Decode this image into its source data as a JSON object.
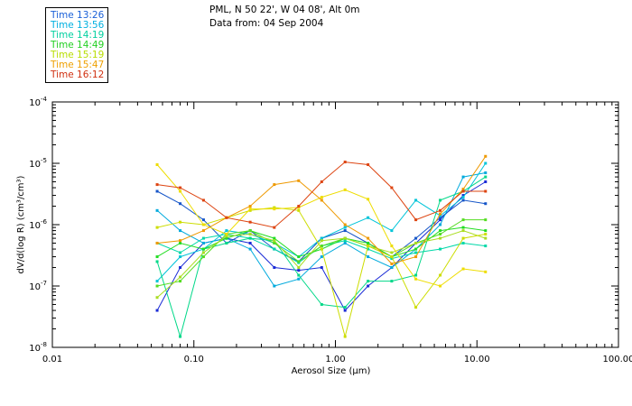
{
  "header": {
    "site": "PML, N 50 22', W 04 08', Alt 0m",
    "date_line": "Data from: 04 Sep 2004"
  },
  "chart_data": {
    "type": "line",
    "title": "PML, N 50 22', W 04 08', Alt 0m",
    "subtitle": "Data from: 04 Sep 2004",
    "xlabel": "Aerosol Size (µm)",
    "ylabel": "dV/d(log R) (cm³/cm³)",
    "xscale": "log",
    "yscale": "log",
    "xlim": [
      0.01,
      100
    ],
    "ylim": [
      1e-08,
      0.0001
    ],
    "x_ticks": [
      {
        "value": 0.01,
        "label": "0.01"
      },
      {
        "value": 0.1,
        "label": "0.10"
      },
      {
        "value": 1,
        "label": "1.00"
      },
      {
        "value": 10,
        "label": "10.00"
      },
      {
        "value": 100,
        "label": "100.00"
      }
    ],
    "y_ticks": [
      {
        "value": 1e-08,
        "base": "10",
        "exp": "-8"
      },
      {
        "value": 1e-07,
        "base": "10",
        "exp": "-7"
      },
      {
        "value": 1e-06,
        "base": "10",
        "exp": "-6"
      },
      {
        "value": 1e-05,
        "base": "10",
        "exp": "-5"
      },
      {
        "value": 0.0001,
        "base": "10",
        "exp": "-4"
      }
    ],
    "x": [
      0.055,
      0.08,
      0.117,
      0.17,
      0.25,
      0.37,
      0.55,
      0.8,
      1.17,
      1.7,
      2.5,
      3.7,
      5.5,
      8.0,
      11.5
    ],
    "series": [
      {
        "name": "Time 13:26",
        "color": "#1a2bd6",
        "values": [
          4e-08,
          2e-07,
          5e-07,
          6e-07,
          5e-07,
          2e-07,
          1.8e-07,
          2e-07,
          4e-08,
          1e-07,
          2e-07,
          5e-07,
          1.2e-06,
          3e-06,
          5e-06
        ]
      },
      {
        "name": "Time 13:26",
        "color": "#1555c8",
        "values": [
          3.5e-06,
          2.2e-06,
          1.2e-06,
          5e-07,
          8e-07,
          4e-07,
          2.5e-07,
          6e-07,
          8e-07,
          5e-07,
          3e-07,
          6e-07,
          1.3e-06,
          2.5e-06,
          2.2e-06
        ]
      },
      {
        "name": "Time 13:56",
        "color": "#00aadd",
        "values": [
          1.7e-06,
          8e-07,
          5e-07,
          6e-07,
          4e-07,
          1e-07,
          1.3e-07,
          3e-07,
          5e-07,
          3e-07,
          2e-07,
          4e-07,
          1e-06,
          6e-06,
          7e-06
        ]
      },
      {
        "name": "Time 13:56",
        "color": "#00c4d8",
        "values": [
          1.2e-07,
          3e-07,
          4e-07,
          8e-07,
          7e-07,
          5e-07,
          3e-07,
          6e-07,
          9e-07,
          1.3e-06,
          8e-07,
          2.5e-06,
          1.4e-06,
          2.8e-06,
          1e-05
        ]
      },
      {
        "name": "Time 14:19",
        "color": "#00d8a8",
        "values": [
          5e-07,
          3.5e-07,
          6e-07,
          7e-07,
          6e-07,
          4e-07,
          2.4e-07,
          4.5e-07,
          5.5e-07,
          4e-07,
          2.8e-07,
          3.5e-07,
          4e-07,
          5e-07,
          4.5e-07
        ]
      },
      {
        "name": "Time 14:19",
        "color": "#00d888",
        "values": [
          2.5e-07,
          1.5e-08,
          4e-07,
          5e-07,
          6e-07,
          5.5e-07,
          1.5e-07,
          5e-08,
          4.5e-08,
          1.2e-07,
          1.2e-07,
          1.5e-07,
          2.5e-06,
          3.5e-06,
          6e-06
        ]
      },
      {
        "name": "Time 14:49",
        "color": "#22dd22",
        "values": [
          3e-07,
          5e-07,
          4e-07,
          6e-07,
          8e-07,
          6e-07,
          3e-07,
          4e-07,
          6e-07,
          5e-07,
          3e-07,
          4e-07,
          8e-07,
          9e-07,
          8e-07
        ]
      },
      {
        "name": "Time 14:49",
        "color": "#55dd22",
        "values": [
          1e-07,
          1.2e-07,
          3e-07,
          7e-07,
          8e-07,
          5e-07,
          2.5e-07,
          4.5e-07,
          6e-07,
          4.5e-07,
          3e-07,
          5e-07,
          7e-07,
          1.2e-06,
          1.2e-06
        ]
      },
      {
        "name": "Time 15:19",
        "color": "#aadd22",
        "values": [
          6.5e-08,
          1.4e-07,
          3.5e-07,
          6.5e-07,
          7e-07,
          5.5e-07,
          2e-07,
          5.5e-07,
          6e-07,
          4.5e-07,
          3.5e-07,
          5e-07,
          6e-07,
          8e-07,
          6e-07
        ]
      },
      {
        "name": "Time 15:19",
        "color": "#ccdd00",
        "values": [
          9e-07,
          1.1e-06,
          1e-06,
          1.3e-06,
          1.7e-06,
          1.9e-06,
          1.7e-06,
          4e-07,
          1.5e-08,
          4.5e-07,
          3e-07,
          4.5e-08,
          1.5e-07,
          6e-07,
          7e-07
        ]
      },
      {
        "name": "Time 15:47",
        "color": "#eedd00",
        "values": [
          9.5e-06,
          3.5e-06,
          1e-06,
          7e-07,
          1.8e-06,
          1.8e-06,
          1.9e-06,
          2.8e-06,
          3.7e-06,
          2.6e-06,
          4.5e-07,
          1.3e-07,
          1e-07,
          1.9e-07,
          1.7e-07
        ]
      },
      {
        "name": "Time 15:47",
        "color": "#ee9900",
        "values": [
          5e-07,
          5.5e-07,
          8e-07,
          1.3e-06,
          2e-06,
          4.5e-06,
          5.2e-06,
          2.5e-06,
          1e-06,
          6e-07,
          2.3e-07,
          3e-07,
          1.5e-06,
          3.8e-06,
          1.3e-05
        ]
      },
      {
        "name": "Time 16:12",
        "color": "#dd4411",
        "values": [
          4.5e-06,
          4e-06,
          2.5e-06,
          1.3e-06,
          1.1e-06,
          9e-07,
          2e-06,
          5e-06,
          1.05e-05,
          9.5e-06,
          4e-06,
          1.2e-06,
          1.7e-06,
          3.5e-06,
          3.5e-06
        ]
      }
    ]
  },
  "legend": [
    {
      "label": "Time 13:26",
      "color": "#1a60d8"
    },
    {
      "label": "Time 13:56",
      "color": "#00b0e0"
    },
    {
      "label": "Time 14:19",
      "color": "#00d0a0"
    },
    {
      "label": "Time 14:49",
      "color": "#22d022"
    },
    {
      "label": "Time 15:19",
      "color": "#b8dd00"
    },
    {
      "label": "Time 15:47",
      "color": "#eea000"
    },
    {
      "label": "Time 16:12",
      "color": "#d03010"
    }
  ]
}
